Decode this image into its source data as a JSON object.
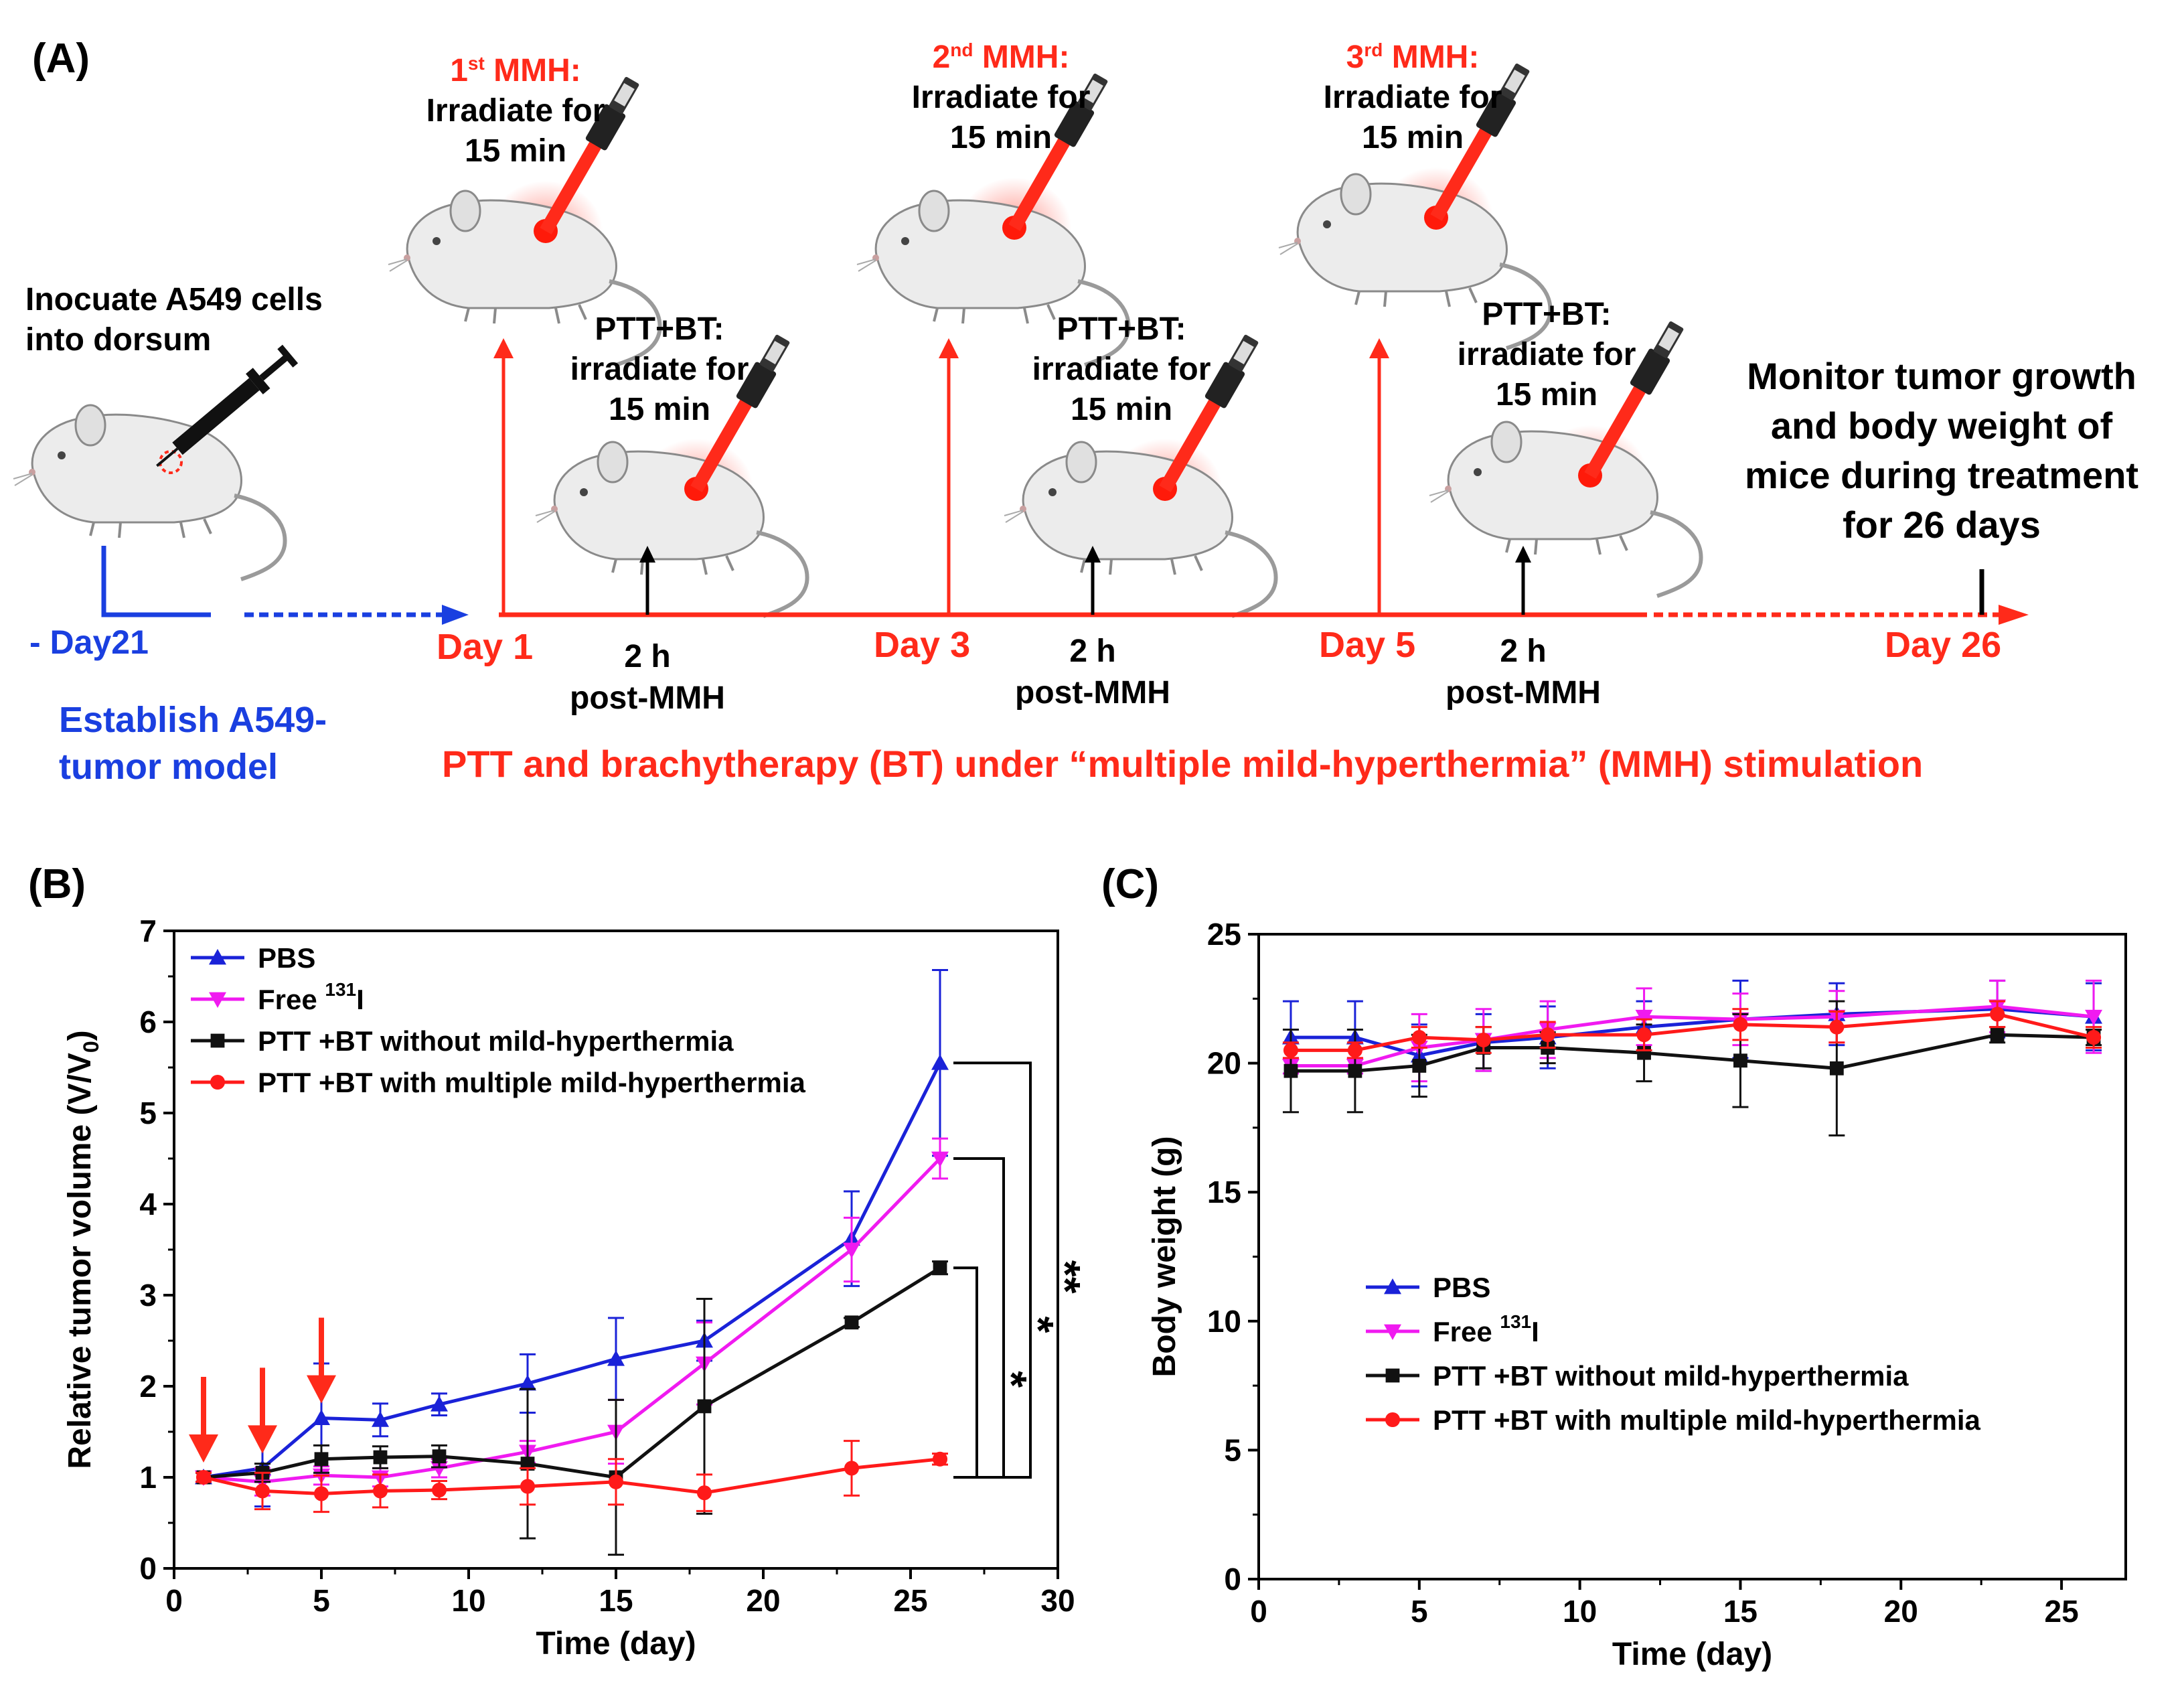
{
  "panel_a": {
    "label": "(A)",
    "inoculate": [
      "Inocuate A549 cells",
      "into dorsum"
    ],
    "day_minus21": "- Day21",
    "establish": [
      "Establish A549-",
      "tumor model"
    ],
    "mmh": [
      {
        "ord": "1",
        "sup": "st",
        "rest": " MMH:",
        "l1": "Irradiate for",
        "l2": "15 min"
      },
      {
        "ord": "2",
        "sup": "nd",
        "rest": " MMH:",
        "l1": "Irradiate for",
        "l2": "15 min"
      },
      {
        "ord": "3",
        "sup": "rd",
        "rest": " MMH:",
        "l1": "Irradiate for",
        "l2": "15 min"
      }
    ],
    "pttbt": [
      {
        "l0": "PTT+BT:",
        "l1": "irradiate for",
        "l2": "15 min"
      },
      {
        "l0": "PTT+BT:",
        "l1": "irradiate for",
        "l2": "15 min"
      },
      {
        "l0": "PTT+BT:",
        "l1": "irradiate for",
        "l2": "15 min"
      }
    ],
    "days": [
      "Day 1",
      "Day 3",
      "Day 5",
      "Day 26"
    ],
    "post": [
      {
        "l1": "2 h",
        "l2": "post-MMH"
      },
      {
        "l1": "2 h",
        "l2": "post-MMH"
      },
      {
        "l1": "2 h",
        "l2": "post-MMH"
      }
    ],
    "monitor": [
      "Monitor tumor growth",
      "and body weight of",
      "mice during treatment",
      "for 26 days"
    ],
    "caption": "PTT and brachytherapy (BT) under “multiple mild-hyperthermia” (MMH) stimulation"
  },
  "chart_data": [
    {
      "panel": "(B)",
      "type": "line",
      "xlabel": "Time (day)",
      "ylabel": "Relative tumor volume (V/V",
      "ylabel_sub": "0",
      "xlim": [
        0,
        30
      ],
      "ylim": [
        0,
        7
      ],
      "xticks": [
        0,
        5,
        10,
        15,
        20,
        25,
        30
      ],
      "yticks": [
        0,
        1,
        2,
        3,
        4,
        5,
        6,
        7
      ],
      "x": [
        1,
        3,
        5,
        7,
        9,
        12,
        15,
        18,
        23,
        26
      ],
      "series": [
        {
          "name": "PBS",
          "sup": "",
          "color": "#1a22d8",
          "marker": "triangle-up",
          "values": [
            1.0,
            1.1,
            1.65,
            1.63,
            1.8,
            2.03,
            2.3,
            2.5,
            3.62,
            5.55
          ],
          "err": [
            0.05,
            0.42,
            0.6,
            0.18,
            0.12,
            0.32,
            0.45,
            0.22,
            0.52,
            1.02
          ]
        },
        {
          "name": "Free ",
          "sup": "131",
          "suffix": "I",
          "color": "#f01af0",
          "marker": "triangle-down",
          "values": [
            1.0,
            0.95,
            1.02,
            1.0,
            1.1,
            1.28,
            1.5,
            2.25,
            3.5,
            4.5
          ],
          "err": [
            0.05,
            0.15,
            0.1,
            0.1,
            0.1,
            0.12,
            0.35,
            0.45,
            0.35,
            0.22
          ]
        },
        {
          "name": "PTT +BT without mild-hyperthermia",
          "sup": "",
          "color": "#111111",
          "marker": "square",
          "values": [
            1.0,
            1.05,
            1.2,
            1.22,
            1.23,
            1.15,
            1.0,
            1.78,
            2.7,
            3.3
          ],
          "err": [
            0.05,
            0.1,
            0.15,
            0.12,
            0.12,
            0.82,
            0.85,
            1.18,
            0.05,
            0.07
          ]
        },
        {
          "name": "PTT +BT with multiple mild-hyperthermia",
          "sup": "",
          "color": "#ff1a1a",
          "marker": "circle",
          "values": [
            1.0,
            0.85,
            0.82,
            0.85,
            0.86,
            0.9,
            0.95,
            0.83,
            1.1,
            1.2
          ],
          "err": [
            0.05,
            0.2,
            0.2,
            0.18,
            0.1,
            0.2,
            0.25,
            0.2,
            0.3,
            0.06
          ]
        }
      ],
      "arrows_at_x": [
        1,
        3,
        5
      ],
      "significance": [
        "*",
        "*",
        "**"
      ]
    },
    {
      "panel": "(C)",
      "type": "line",
      "xlabel": "Time (day)",
      "ylabel": "Body weight (g)",
      "xlim": [
        0,
        27
      ],
      "ylim": [
        0,
        25
      ],
      "xticks": [
        0,
        5,
        10,
        15,
        20,
        25
      ],
      "yticks": [
        0,
        5,
        10,
        15,
        20,
        25
      ],
      "x": [
        1,
        3,
        5,
        7,
        9,
        12,
        15,
        18,
        23,
        26
      ],
      "series": [
        {
          "name": "PBS",
          "sup": "",
          "color": "#1a22d8",
          "marker": "triangle-up",
          "values": [
            21.0,
            21.0,
            20.3,
            20.8,
            21.0,
            21.4,
            21.7,
            21.9,
            22.1,
            21.8
          ],
          "err": [
            1.4,
            1.4,
            1.2,
            1.1,
            1.2,
            1.0,
            1.5,
            1.2,
            1.1,
            1.3
          ]
        },
        {
          "name": "Free ",
          "sup": "131",
          "suffix": "I",
          "color": "#f01af0",
          "marker": "triangle-down",
          "values": [
            19.9,
            19.9,
            20.6,
            20.9,
            21.3,
            21.8,
            21.7,
            21.8,
            22.2,
            21.8
          ],
          "err": [
            0.3,
            0.3,
            1.3,
            1.2,
            1.1,
            1.1,
            1.0,
            1.0,
            1.0,
            1.4
          ]
        },
        {
          "name": "PTT +BT without mild-hyperthermia",
          "sup": "",
          "color": "#111111",
          "marker": "square",
          "values": [
            19.7,
            19.7,
            19.9,
            20.6,
            20.6,
            20.4,
            20.1,
            19.8,
            21.1,
            21.0
          ],
          "err": [
            1.6,
            1.6,
            1.2,
            0.8,
            0.6,
            1.1,
            1.8,
            2.6,
            0.3,
            0.3
          ]
        },
        {
          "name": "PTT +BT with multiple mild-hyperthermia",
          "sup": "",
          "color": "#ff1a1a",
          "marker": "circle",
          "values": [
            20.5,
            20.5,
            21.0,
            20.9,
            21.1,
            21.1,
            21.5,
            21.4,
            21.9,
            21.0
          ],
          "err": [
            0.3,
            0.3,
            0.4,
            0.5,
            0.5,
            0.6,
            0.6,
            0.6,
            0.5,
            0.4
          ]
        }
      ]
    }
  ]
}
